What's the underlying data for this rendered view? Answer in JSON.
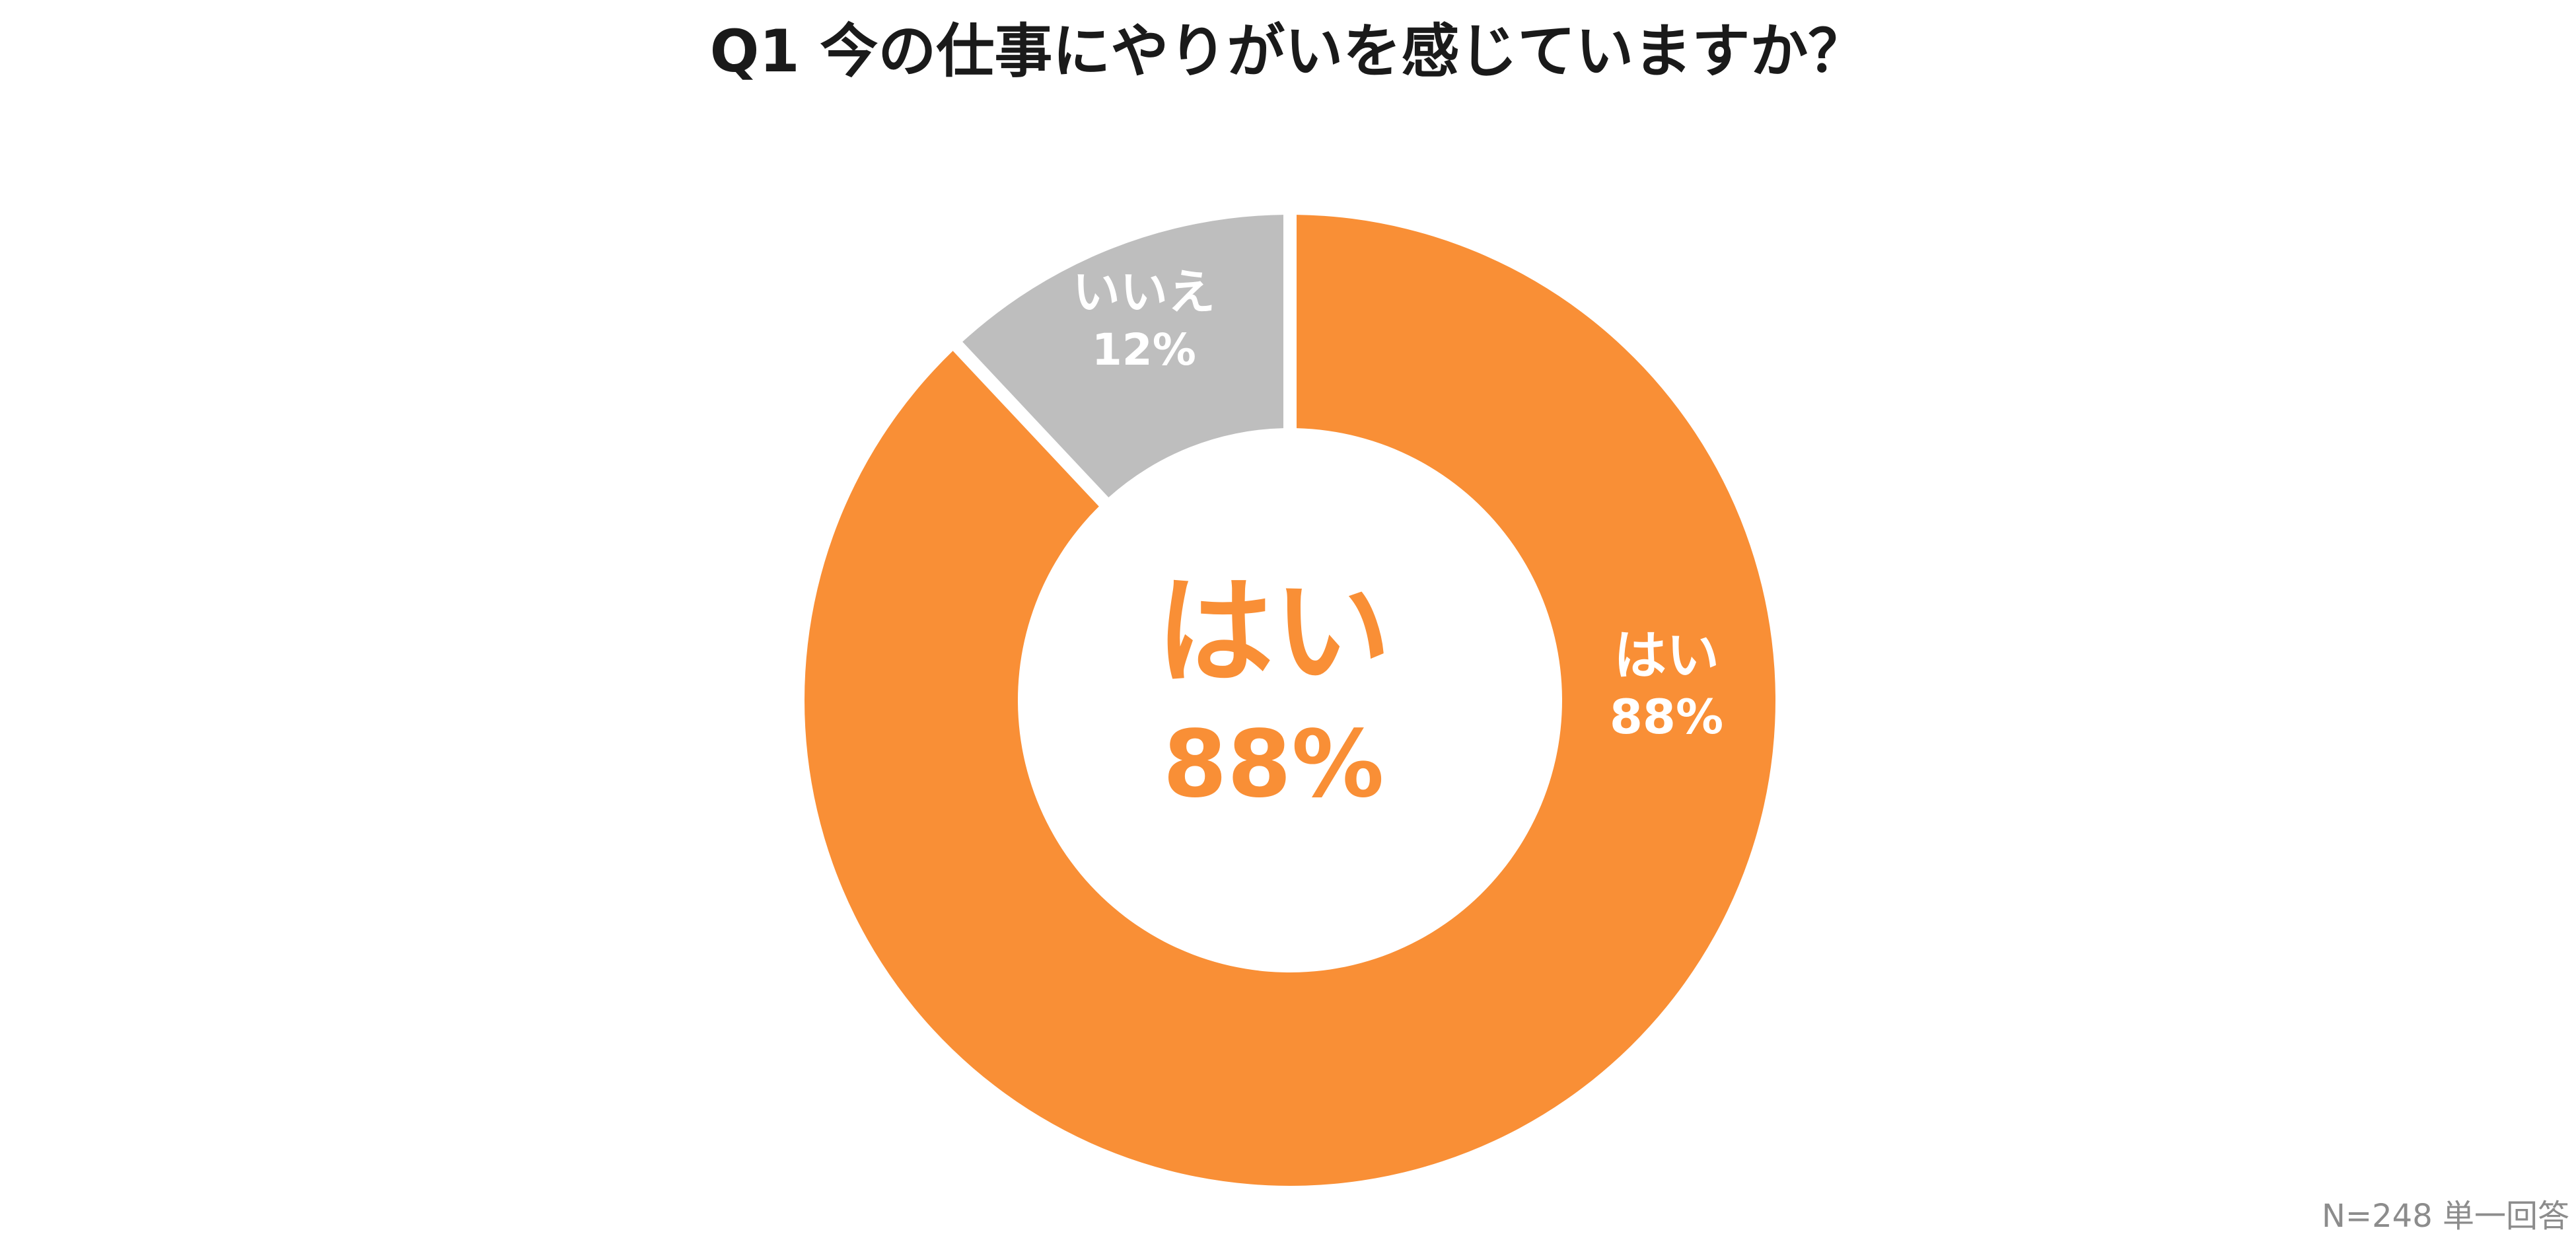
{
  "chart_data": {
    "type": "pie",
    "title": "Q1 今の仕事にやりがいを感じていますか？",
    "categories": [
      "はい",
      "いいえ"
    ],
    "values": [
      88,
      12
    ],
    "value_labels": [
      "88%",
      "12%"
    ],
    "colors": [
      "#f98f36",
      "#bebebe"
    ],
    "center_label": "はい",
    "center_value": "88%",
    "note": "N=248 単一回答"
  }
}
